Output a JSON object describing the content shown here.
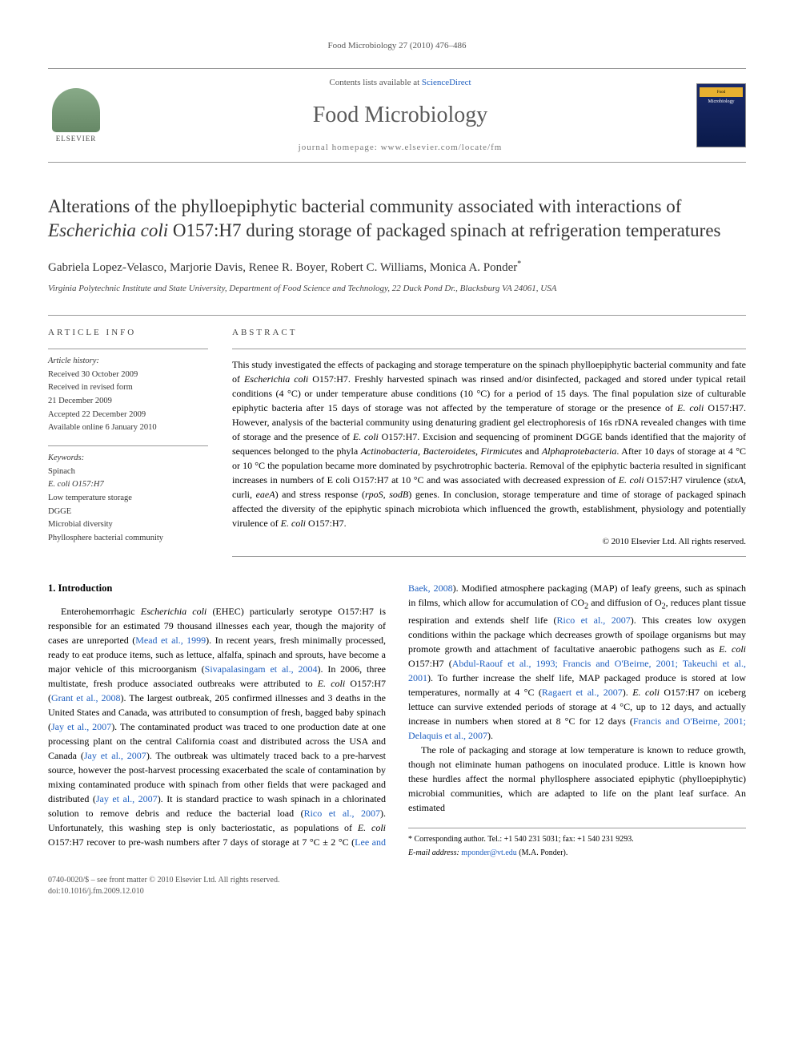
{
  "running_head": "Food Microbiology 27 (2010) 476–486",
  "header": {
    "contents_prefix": "Contents lists available at ",
    "contents_link": "ScienceDirect",
    "journal_title": "Food Microbiology",
    "homepage_prefix": "journal homepage: ",
    "homepage_url": "www.elsevier.com/locate/fm",
    "publisher_name": "ELSEVIER",
    "cover_top_text": "Food",
    "cover_label": "Microbiology"
  },
  "article": {
    "title_pre": "Alterations of the phylloepiphytic bacterial community associated with interactions of ",
    "title_italic": "Escherichia coli",
    "title_post": " O157:H7 during storage of packaged spinach at refrigeration temperatures",
    "authors": "Gabriela Lopez-Velasco, Marjorie Davis, Renee R. Boyer, Robert C. Williams, Monica A. Ponder",
    "author_corr_mark": "*",
    "affiliation": "Virginia Polytechnic Institute and State University, Department of Food Science and Technology, 22 Duck Pond Dr., Blacksburg VA 24061, USA"
  },
  "info": {
    "heading": "article info",
    "history_label": "Article history:",
    "received": "Received 30 October 2009",
    "revised": "Received in revised form",
    "revised_date": "21 December 2009",
    "accepted": "Accepted 22 December 2009",
    "online": "Available online 6 January 2010",
    "kw_label": "Keywords:",
    "keywords": [
      "Spinach",
      "E. coli O157:H7",
      "Low temperature storage",
      "DGGE",
      "Microbial diversity",
      "Phyllosphere bacterial community"
    ]
  },
  "abstract": {
    "heading": "abstract",
    "text_parts": [
      "This study investigated the effects of packaging and storage temperature on the spinach phylloepiphytic bacterial community and fate of ",
      "Escherichia coli",
      " O157:H7. Freshly harvested spinach was rinsed and/or disinfected, packaged and stored under typical retail conditions (4 °C) or under temperature abuse conditions (10 °C) for a period of 15 days. The final population size of culturable epiphytic bacteria after 15 days of storage was not affected by the temperature of storage or the presence of ",
      "E. coli",
      " O157:H7. However, analysis of the bacterial community using denaturing gradient gel electrophoresis of 16s rDNA revealed changes with time of storage and the presence of ",
      "E. coli",
      " O157:H7. Excision and sequencing of prominent DGGE bands identified that the majority of sequences belonged to the phyla ",
      "Actinobacteria, Bacteroidetes, Firmicutes",
      " and ",
      "Alphaprotebacteria",
      ". After 10 days of storage at 4 °C or 10 °C the population became more dominated by psychrotrophic bacteria. Removal of the epiphytic bacteria resulted in significant increases in numbers of E coli O157:H7 at 10 °C and was associated with decreased expression of ",
      "E. coli",
      " O157:H7 virulence (",
      "stxA",
      ", curli, ",
      "eaeA",
      ") and stress response (",
      "rpoS, sodB",
      ") genes. In conclusion, storage temperature and time of storage of packaged spinach affected the diversity of the epiphytic spinach microbiota which influenced the growth, establishment, physiology and potentially virulence of ",
      "E. coli",
      " O157:H7."
    ],
    "copyright": "© 2010 Elsevier Ltd. All rights reserved."
  },
  "intro": {
    "heading": "1. Introduction",
    "p1": {
      "t1": "Enterohemorrhagic ",
      "i1": "Escherichia coli",
      "t2": " (EHEC) particularly serotype O157:H7 is responsible for an estimated 79 thousand illnesses each year, though the majority of cases are unreported (",
      "l1": "Mead et al., 1999",
      "t3": "). In recent years, fresh minimally processed, ready to eat produce items, such as lettuce, alfalfa, spinach and sprouts, have become a major vehicle of this microorganism (",
      "l2": "Sivapalasingam et al., 2004",
      "t4": "). In 2006, three multistate, fresh produce associated outbreaks were attributed to ",
      "i2": "E. coli",
      "t5": " O157:H7 (",
      "l3": "Grant et al., 2008",
      "t6": "). The largest outbreak, 205 confirmed illnesses and 3 deaths in the United States and Canada, was attributed to consumption of fresh, bagged baby spinach (",
      "l4": "Jay et al., 2007",
      "t7": "). The contaminated product was traced to one production date at one processing plant on the central California coast and distributed across the USA and Canada (",
      "l5": "Jay et al., 2007",
      "t8": "). The outbreak was ultimately traced back to a pre-harvest source, however the post-harvest processing exacerbated the scale of contamination by mixing contaminated produce with spinach from other fields that were packaged and distributed (",
      "l6": "Jay et al., 2007",
      "t9": "). It is standard practice to"
    },
    "p2": {
      "t1": "wash spinach in a chlorinated solution to remove debris and reduce the bacterial load (",
      "l1": "Rico et al., 2007",
      "t2": "). Unfortunately, this washing step is only bacteriostatic, as populations of ",
      "i1": "E. coli",
      "t3": " O157:H7 recover to pre-wash numbers after 7 days of storage at 7 °C ± 2 °C (",
      "l2": "Lee and Baek, 2008",
      "t4": "). Modified atmosphere packaging (MAP) of leafy greens, such as spinach in films, which allow for accumulation of CO",
      "sub1": "2",
      "t5": " and diffusion of O",
      "sub2": "2",
      "t6": ", reduces plant tissue respiration and extends shelf life (",
      "l3": "Rico et al., 2007",
      "t7": "). This creates low oxygen conditions within the package which decreases growth of spoilage organisms but may promote growth and attachment of facultative anaerobic pathogens such as ",
      "i2": "E. coli",
      "t8": " O157:H7 (",
      "l4": "Abdul-Raouf et al., 1993; Francis and O'Beirne, 2001; Takeuchi et al., 2001",
      "t9": "). To further increase the shelf life, MAP packaged produce is stored at low temperatures, normally at 4 °C (",
      "l5": "Ragaert et al., 2007",
      "t10": "). ",
      "i3": "E. coli",
      "t11": " O157:H7 on iceberg lettuce can survive extended periods of storage at 4 °C, up to 12 days, and actually increase in numbers when stored at 8 °C for 12 days (",
      "l6": "Francis and O'Beirne, 2001; Delaquis et al., 2007",
      "t12": ")."
    },
    "p3": "The role of packaging and storage at low temperature is known to reduce growth, though not eliminate human pathogens on inoculated produce. Little is known how these hurdles affect the normal phyllosphere associated epiphytic (phylloepiphytic) microbial communities, which are adapted to life on the plant leaf surface. An estimated"
  },
  "footnote": {
    "corr": "* Corresponding author. Tel.: +1 540 231 5031; fax: +1 540 231 9293.",
    "email_label": "E-mail address: ",
    "email": "mponder@vt.edu",
    "email_post": " (M.A. Ponder)."
  },
  "footer": {
    "line1": "0740-0020/$ – see front matter © 2010 Elsevier Ltd. All rights reserved.",
    "line2": "doi:10.1016/j.fm.2009.12.010"
  },
  "colors": {
    "link": "#2060c0",
    "text": "#000000",
    "muted": "#555555",
    "rule": "#999999"
  }
}
